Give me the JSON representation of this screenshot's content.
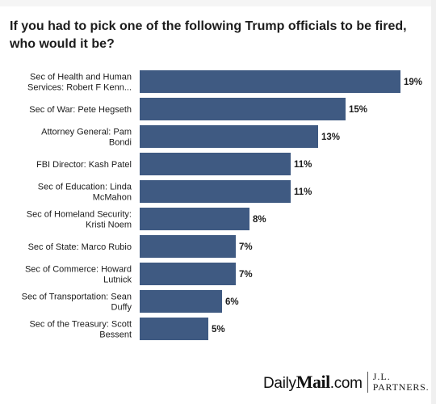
{
  "chart_data": {
    "type": "bar",
    "orientation": "horizontal",
    "title": "If you had to pick one of the following Trump officials to be fired, who would it be?",
    "categories": [
      [
        "Sec of Health and Human",
        "Services: Robert F Kenn..."
      ],
      [
        "Sec of War: Pete Hegseth"
      ],
      [
        "Attorney General: Pam",
        "Bondi"
      ],
      [
        "FBI Director: Kash Patel"
      ],
      [
        "Sec of Education: Linda",
        "McMahon"
      ],
      [
        "Sec of Homeland Security:",
        "Kristi Noem"
      ],
      [
        "Sec of State: Marco Rubio"
      ],
      [
        "Sec of Commerce: Howard",
        "Lutnick"
      ],
      [
        "Sec of Transportation: Sean",
        "Duffy"
      ],
      [
        "Sec of the Treasury: Scott",
        "Bessent"
      ]
    ],
    "values": [
      19,
      15,
      13,
      11,
      11,
      8,
      7,
      7,
      6,
      5
    ],
    "value_labels": [
      "19%",
      "15%",
      "13%",
      "11%",
      "11%",
      "8%",
      "7%",
      "7%",
      "6%",
      "5%"
    ],
    "unit": "%",
    "xlim": [
      0,
      19
    ],
    "grid": false,
    "legend": "none",
    "bar_color": "#3f5a82"
  },
  "footer": {
    "brand_daily": "Daily",
    "brand_mail": "Mail",
    "brand_com": ".com",
    "partner_line1": "J.L.",
    "partner_line2": "PARTNERS."
  }
}
